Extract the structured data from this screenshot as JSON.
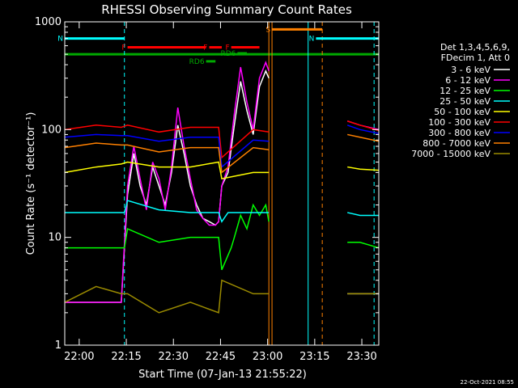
{
  "chart_data": {
    "type": "line",
    "title": "RHESSI Observing Summary Count Rates",
    "xlabel": "Start Time (07-Jan-13 21:55:22)",
    "ylabel": "Count Rate (s⁻¹ detector⁻¹)",
    "x_unit": "minutes since 21:55:22",
    "xlim": [
      0,
      100
    ],
    "ylim": [
      1,
      1000
    ],
    "yscale": "log",
    "x_ticks": [
      {
        "label": "22:00",
        "t": 4.6
      },
      {
        "label": "22:15",
        "t": 19.6
      },
      {
        "label": "22:30",
        "t": 34.6
      },
      {
        "label": "22:45",
        "t": 49.6
      },
      {
        "label": "23:00",
        "t": 64.6
      },
      {
        "label": "23:15",
        "t": 79.6
      },
      {
        "label": "23:30",
        "t": 94.6
      }
    ],
    "y_ticks": [
      {
        "label": "1",
        "v": 1
      },
      {
        "label": "10",
        "v": 10
      },
      {
        "label": "100",
        "v": 100
      },
      {
        "label": "1000",
        "v": 1000
      }
    ],
    "legend_header": [
      "Det 1,3,4,5,6,9,",
      "FDecim 1, Att 0"
    ],
    "series": [
      {
        "name": "3 - 6 keV",
        "color": "#ffffff",
        "x": [
          0,
          6,
          12,
          18,
          20,
          22,
          24,
          26,
          28,
          30,
          32,
          34,
          36,
          38,
          40,
          42,
          44,
          46,
          48,
          49,
          50,
          52,
          54,
          56,
          58,
          60,
          62,
          64,
          65
        ],
        "values": [
          2.5,
          2.5,
          2.5,
          2.5,
          25,
          60,
          30,
          20,
          45,
          30,
          20,
          40,
          110,
          60,
          30,
          20,
          15,
          14,
          13,
          14,
          30,
          40,
          110,
          280,
          150,
          90,
          250,
          350,
          300
        ]
      },
      {
        "name": "6 - 12 keV",
        "color": "#ff00ff",
        "x": [
          0,
          6,
          12,
          18,
          20,
          22,
          24,
          26,
          28,
          30,
          32,
          34,
          36,
          38,
          40,
          42,
          44,
          46,
          48,
          49,
          50,
          52,
          54,
          56,
          58,
          60,
          62,
          64,
          65
        ],
        "values": [
          2.5,
          2.5,
          2.5,
          2.5,
          30,
          70,
          35,
          18,
          50,
          35,
          18,
          45,
          160,
          70,
          35,
          18,
          15,
          13,
          13,
          14,
          30,
          45,
          140,
          380,
          180,
          100,
          300,
          420,
          350
        ]
      },
      {
        "name": "12 - 25 keV",
        "color": "#00ff00",
        "x": [
          0,
          10,
          19,
          20,
          30,
          40,
          49,
          50,
          53,
          54,
          56,
          58,
          60,
          62,
          64,
          65
        ],
        "values": [
          8,
          8,
          8,
          12,
          9,
          10,
          10,
          5,
          8,
          10,
          16,
          12,
          20,
          16,
          20,
          14
        ]
      },
      {
        "name": "25 - 50 keV",
        "color": "#00ffff",
        "x": [
          0,
          19,
          20,
          30,
          40,
          49,
          50,
          52,
          60,
          65
        ],
        "values": [
          17,
          17,
          22,
          18,
          17,
          17,
          14,
          17,
          17,
          17
        ]
      },
      {
        "name": "50 - 100 keV",
        "color": "#ffff00",
        "x": [
          0,
          10,
          18,
          20,
          30,
          40,
          49,
          50,
          60,
          65
        ],
        "values": [
          40,
          45,
          48,
          50,
          45,
          45,
          50,
          35,
          40,
          40
        ]
      },
      {
        "name": "100 - 300 keV",
        "color": "#ff0000",
        "x": [
          0,
          10,
          18,
          20,
          30,
          40,
          49,
          50,
          60,
          65
        ],
        "values": [
          100,
          110,
          105,
          110,
          95,
          105,
          105,
          55,
          100,
          95
        ]
      },
      {
        "name": "300 - 800 keV",
        "color": "#0000ff",
        "x": [
          0,
          10,
          18,
          20,
          30,
          40,
          49,
          50,
          60,
          65
        ],
        "values": [
          85,
          90,
          88,
          88,
          78,
          85,
          85,
          45,
          80,
          78
        ]
      },
      {
        "name": "800 - 7000 keV",
        "color": "#ff8000",
        "x": [
          0,
          10,
          18,
          20,
          30,
          40,
          49,
          50,
          60,
          65
        ],
        "values": [
          68,
          75,
          72,
          72,
          62,
          68,
          68,
          40,
          68,
          65
        ]
      },
      {
        "name": "7000 - 15000 keV",
        "color": "#9b8b00",
        "x": [
          0,
          10,
          18,
          20,
          30,
          40,
          49,
          50,
          60,
          65
        ],
        "values": [
          2.5,
          3.5,
          3,
          3,
          2,
          2.5,
          2,
          4,
          3,
          3
        ]
      }
    ],
    "post_gap": {
      "x": [
        90,
        94,
        100
      ],
      "values": {
        "6 - 12 keV": [
          120,
          110,
          100
        ],
        "100 - 300 keV": [
          120,
          110,
          98
        ],
        "300 - 800 keV": [
          110,
          100,
          92
        ],
        "800 - 7000 keV": [
          90,
          85,
          78
        ],
        "50 - 100 keV": [
          45,
          43,
          42
        ],
        "25 - 50 keV": [
          17,
          16,
          16
        ],
        "12 - 25 keV": [
          9,
          9,
          8
        ],
        "7000 - 15000 keV": [
          3,
          3,
          3
        ],
        "3 - 6 keV": [
          3,
          3,
          3
        ]
      }
    },
    "flags": [
      {
        "label": "N",
        "color": "#00ffff",
        "start": 0,
        "end": 19,
        "level": 700
      },
      {
        "label": "N",
        "color": "#00ffff",
        "start": 80,
        "end": 100,
        "level": 700
      },
      {
        "label": "F",
        "color": "#ff0000",
        "start": 20,
        "end": 45,
        "level": 580
      },
      {
        "label": "F",
        "color": "#ff0000",
        "start": 46,
        "end": 50,
        "level": 580
      },
      {
        "label": "F",
        "color": "#ff0000",
        "start": 53,
        "end": 62,
        "level": 580
      },
      {
        "label": "S",
        "color": "#ff8000",
        "start": 66,
        "end": 82,
        "level": 850
      },
      {
        "label": "RD6",
        "color": "#00aa00",
        "start": 45,
        "end": 48,
        "level": 430
      },
      {
        "label": "RD6",
        "color": "#00aa00",
        "start": 55,
        "end": 58,
        "level": 510
      }
    ],
    "reference_line": {
      "color": "#00aa00",
      "level": 500
    },
    "vlines": [
      {
        "t": 19,
        "color": "#00ffff",
        "style": "dash"
      },
      {
        "t": 65,
        "color": "#ff8000",
        "style": "solid"
      },
      {
        "t": 66,
        "color": "#ff8000",
        "style": "solid"
      },
      {
        "t": 77.5,
        "color": "#00ffff",
        "style": "solid"
      },
      {
        "t": 82,
        "color": "#ff8000",
        "style": "dash"
      },
      {
        "t": 98.5,
        "color": "#00ffff",
        "style": "dash"
      }
    ],
    "footer": "22-Oct-2021 08:55"
  }
}
